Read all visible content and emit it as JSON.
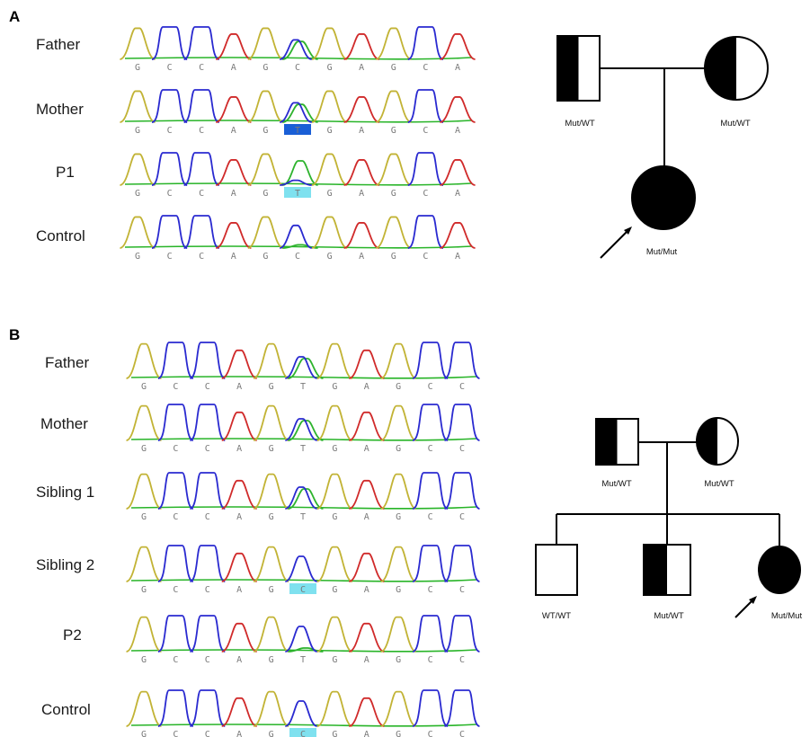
{
  "colors": {
    "A": "#2db32d",
    "C": "#2a2ad0",
    "G": "#c2b335",
    "T": "#d02a2a",
    "baseline": "#28b428",
    "highlight_dark": "#1a5fd6",
    "highlight_light": "#7fe1ef"
  },
  "panelA": {
    "letter": "A",
    "sequence": [
      "G",
      "C",
      "C",
      "A",
      "G",
      "C",
      "G",
      "A",
      "G",
      "C",
      "A"
    ],
    "traces": [
      {
        "label": "Father",
        "bases": [
          "G",
          "C",
          "C",
          "A",
          "G",
          "C",
          "G",
          "A",
          "G",
          "C",
          "A"
        ],
        "het": true,
        "highlight": "",
        "var_base": ""
      },
      {
        "label": "Mother",
        "bases": [
          "G",
          "C",
          "C",
          "A",
          "G",
          "T",
          "G",
          "A",
          "G",
          "C",
          "A"
        ],
        "het": true,
        "highlight": "dark",
        "var_base": "T"
      },
      {
        "label": "P1",
        "bases": [
          "G",
          "C",
          "C",
          "A",
          "G",
          "T",
          "G",
          "A",
          "G",
          "C",
          "A"
        ],
        "het": false,
        "highlight": "light",
        "var_base": "T"
      },
      {
        "label": "Control",
        "bases": [
          "G",
          "C",
          "C",
          "A",
          "G",
          "C",
          "G",
          "A",
          "G",
          "C",
          "A"
        ],
        "het": false,
        "highlight": "",
        "var_base": ""
      }
    ],
    "pedigree": {
      "father_genotype": "Mut/WT",
      "mother_genotype": "Mut/WT",
      "proband_genotype": "Mut/Mut"
    }
  },
  "panelB": {
    "letter": "B",
    "sequence": [
      "G",
      "C",
      "C",
      "A",
      "G",
      "T",
      "G",
      "A",
      "G",
      "C",
      "C"
    ],
    "traces": [
      {
        "label": "Father",
        "bases": [
          "G",
          "C",
          "C",
          "A",
          "G",
          "T",
          "G",
          "A",
          "G",
          "C",
          "C"
        ],
        "het": true,
        "highlight": "",
        "var_base": ""
      },
      {
        "label": "Mother",
        "bases": [
          "G",
          "C",
          "C",
          "A",
          "G",
          "T",
          "G",
          "A",
          "G",
          "C",
          "C"
        ],
        "het": true,
        "highlight": "",
        "var_base": ""
      },
      {
        "label": "Sibling 1",
        "bases": [
          "G",
          "C",
          "C",
          "A",
          "G",
          "T",
          "G",
          "A",
          "G",
          "C",
          "C"
        ],
        "het": true,
        "highlight": "",
        "var_base": ""
      },
      {
        "label": "Sibling 2",
        "bases": [
          "G",
          "C",
          "C",
          "A",
          "G",
          "C",
          "G",
          "A",
          "G",
          "C",
          "C"
        ],
        "het": false,
        "highlight": "light",
        "var_base": "C"
      },
      {
        "label": "P2",
        "bases": [
          "G",
          "C",
          "C",
          "A",
          "G",
          "T",
          "G",
          "A",
          "G",
          "C",
          "C"
        ],
        "het": false,
        "highlight": "",
        "var_base": ""
      },
      {
        "label": "Control",
        "bases": [
          "G",
          "C",
          "C",
          "A",
          "G",
          "C",
          "G",
          "A",
          "G",
          "C",
          "C"
        ],
        "het": false,
        "highlight": "light",
        "var_base": "C"
      }
    ],
    "pedigree": {
      "father_genotype": "Mut/WT",
      "mother_genotype": "Mut/WT",
      "child1_genotype": "WT/WT",
      "child2_genotype": "Mut/WT",
      "proband_genotype": "Mut/Mut"
    }
  }
}
